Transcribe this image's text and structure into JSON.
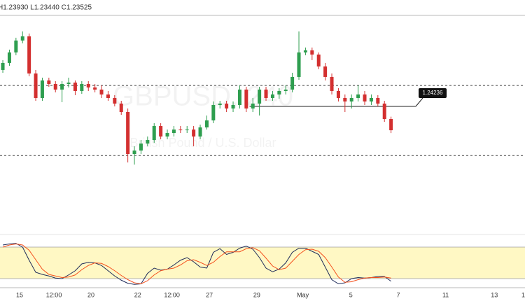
{
  "chart_data": {
    "type": "candlestick",
    "header": "H1.23930  L1.23440  C1.23525",
    "watermark": [
      "GBPUSD, 240",
      "British Pound / U.S. Dollar"
    ],
    "up_color": "#2e9e4f",
    "down_color": "#d32f2f",
    "open": [
      1.25323,
      1.25532,
      1.25846,
      1.26201,
      1.26326,
      1.25218,
      1.24487,
      1.2501,
      1.24905,
      1.24738,
      1.24905,
      1.24947,
      1.24696,
      1.24905,
      1.24801,
      1.24738,
      1.24592,
      1.24487,
      1.2432,
      1.24069,
      1.22815,
      1.22919,
      1.23128,
      1.23233,
      1.23651,
      1.23338,
      1.23442,
      1.23546,
      1.23525,
      1.23546,
      1.23338,
      1.23609,
      1.23818,
      1.24278,
      1.2432,
      1.24174,
      1.24278,
      1.24738,
      1.24174,
      1.2432,
      1.24738,
      1.24487,
      1.24592,
      1.24696,
      1.24738,
      1.25114,
      1.25846,
      1.25908,
      1.25783,
      1.25428,
      1.25114,
      1.24696,
      1.24487,
      1.24383,
      1.24487,
      1.24592,
      1.24383,
      1.24487,
      1.2432,
      1.2386
    ],
    "high": [
      1.25616,
      1.25929,
      1.26284,
      1.26473,
      1.2641,
      1.25323,
      1.25093,
      1.25093,
      1.24989,
      1.24989,
      1.25093,
      1.2501,
      1.24989,
      1.24989,
      1.24905,
      1.24863,
      1.24696,
      1.24571,
      1.24403,
      1.24174,
      1.23045,
      1.23233,
      1.23338,
      1.23735,
      1.23735,
      1.23546,
      1.23651,
      1.23651,
      1.23651,
      1.23651,
      1.23693,
      1.23964,
      1.24383,
      1.24403,
      1.24403,
      1.24383,
      1.24863,
      1.24821,
      1.24487,
      1.24821,
      1.24821,
      1.24696,
      1.2478,
      1.24863,
      1.25239,
      1.26473,
      1.25992,
      1.25992,
      1.25846,
      1.25532,
      1.25218,
      1.2478,
      1.24592,
      1.24592,
      1.24863,
      1.24696,
      1.24592,
      1.24571,
      1.24403,
      1.2393
    ],
    "low": [
      1.25239,
      1.25448,
      1.25762,
      1.26117,
      1.25135,
      1.24403,
      1.24403,
      1.24821,
      1.24654,
      1.24362,
      1.24801,
      1.24571,
      1.24612,
      1.24696,
      1.24654,
      1.24487,
      1.24403,
      1.24236,
      1.23985,
      1.22564,
      1.22501,
      1.22815,
      1.23045,
      1.23149,
      1.23254,
      1.23254,
      1.23338,
      1.23442,
      1.23442,
      1.23045,
      1.23254,
      1.23546,
      1.23735,
      1.24174,
      1.24069,
      1.24069,
      1.24174,
      1.24069,
      1.24069,
      1.23964,
      1.24403,
      1.24403,
      1.24466,
      1.24592,
      1.24654,
      1.2503,
      1.25762,
      1.25616,
      1.25344,
      1.2501,
      1.24592,
      1.24383,
      1.24069,
      1.24174,
      1.24383,
      1.24278,
      1.24278,
      1.24236,
      1.23776,
      1.2344
    ],
    "close": [
      1.25532,
      1.25846,
      1.26201,
      1.26326,
      1.25218,
      1.24487,
      1.2501,
      1.24905,
      1.24738,
      1.24905,
      1.24947,
      1.24696,
      1.24905,
      1.24801,
      1.24738,
      1.24592,
      1.24487,
      1.2432,
      1.24069,
      1.22815,
      1.22919,
      1.23128,
      1.23233,
      1.23651,
      1.23338,
      1.23442,
      1.23546,
      1.23525,
      1.23546,
      1.23338,
      1.23609,
      1.23818,
      1.24278,
      1.2432,
      1.24174,
      1.24278,
      1.24738,
      1.24174,
      1.2432,
      1.24738,
      1.24487,
      1.24592,
      1.24696,
      1.24738,
      1.25114,
      1.25846,
      1.25908,
      1.25783,
      1.25428,
      1.25114,
      1.24696,
      1.24487,
      1.24383,
      1.24487,
      1.24592,
      1.24383,
      1.24487,
      1.2432,
      1.2386,
      1.23525
    ],
    "ylim": [
      1.2052,
      1.2695
    ],
    "xlim": [
      -0.43,
      79.36
    ],
    "xticks": [
      {
        "value": 2.55,
        "label": "15"
      },
      {
        "value": 7.77,
        "label": "12:00"
      },
      {
        "value": 13.4,
        "label": "20"
      },
      {
        "value": 20.5,
        "label": "22"
      },
      {
        "value": 25.7,
        "label": "12:00"
      },
      {
        "value": 31.4,
        "label": "27"
      },
      {
        "value": 38.6,
        "label": "29"
      },
      {
        "value": 45.6,
        "label": "May"
      },
      {
        "value": 52.9,
        "label": "5"
      },
      {
        "value": 60.1,
        "label": "7"
      },
      {
        "value": 67.3,
        "label": "11"
      },
      {
        "value": 74.7,
        "label": "13"
      },
      {
        "value": 79.1,
        "label": "1"
      }
    ],
    "levels": [
      1.2486,
      1.2277
    ],
    "hline": 1.24236,
    "indicator": {
      "type": "stochastic",
      "ylim": [
        0,
        100
      ],
      "bands": [
        20,
        80
      ],
      "band_color": "#fff8c4",
      "series": [
        {
          "color": "#1f2b5a",
          "values": [
            84,
            86,
            87,
            80,
            55,
            32,
            28,
            25,
            21,
            20,
            27,
            35,
            48,
            51,
            50,
            45,
            35,
            25,
            17,
            11,
            9,
            10,
            30,
            40,
            36,
            38,
            46,
            55,
            60,
            52,
            42,
            40,
            70,
            77,
            66,
            70,
            78,
            82,
            76,
            60,
            40,
            33,
            38,
            50,
            70,
            78,
            78,
            72,
            66,
            42,
            18,
            10,
            12,
            20,
            22,
            21,
            22,
            24,
            24,
            15
          ]
        },
        {
          "color": "#f4511e",
          "values": [
            80,
            84,
            86,
            84,
            74,
            56,
            38,
            28,
            25,
            22,
            23,
            27,
            37,
            45,
            50,
            49,
            43,
            35,
            26,
            18,
            12,
            10,
            16,
            27,
            35,
            38,
            40,
            46,
            54,
            56,
            51,
            45,
            51,
            62,
            71,
            71,
            71,
            77,
            79,
            73,
            59,
            44,
            37,
            40,
            53,
            66,
            75,
            76,
            72,
            60,
            42,
            23,
            13,
            14,
            18,
            21,
            22,
            22,
            23,
            21
          ]
        }
      ]
    }
  }
}
